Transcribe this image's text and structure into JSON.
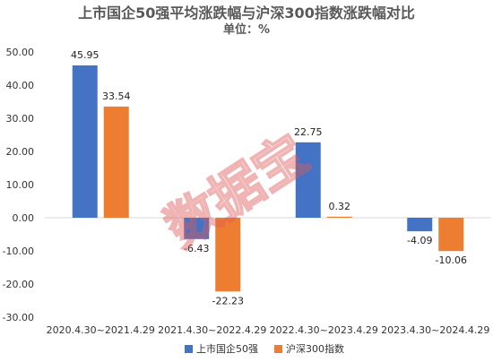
{
  "chart_data": {
    "type": "bar",
    "title": "上市国企50强平均涨跌幅与沪深300指数涨跌幅对比",
    "subtitle": "单位：%",
    "categories": [
      "2020.4.30~2021.4.29",
      "2021.4.30~2022.4.29",
      "2022.4.30~2023.4.29",
      "2023.4.30~2024.4.29"
    ],
    "series": [
      {
        "name": "上市国企50强",
        "values": [
          45.95,
          -6.43,
          22.75,
          -4.09
        ],
        "color": "#4472C4"
      },
      {
        "name": "沪深300指数",
        "values": [
          33.54,
          -22.23,
          0.32,
          -10.06
        ],
        "color": "#ED7D31"
      }
    ],
    "ylim": [
      -30,
      50
    ],
    "yticks": [
      "-30.00",
      "-20.00",
      "-10.00",
      "0.00",
      "10.00",
      "20.00",
      "30.00",
      "40.00",
      "50.00"
    ],
    "xlabel": "",
    "ylabel": "",
    "grid": false,
    "legend": "bottom",
    "watermark": "数据宝"
  }
}
